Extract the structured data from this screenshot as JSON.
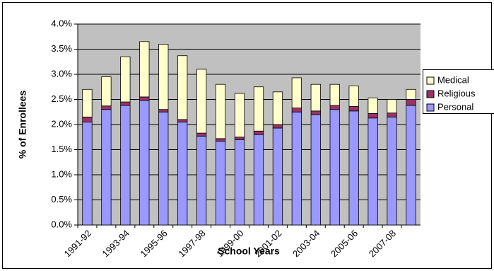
{
  "chart_data": {
    "type": "stacked-bar",
    "x_label": "School Years",
    "y_label": "% of Enrollees",
    "categories": [
      "1991-92",
      null,
      "1993-94",
      null,
      "1995-96",
      null,
      "1997-98",
      null,
      "1999-00",
      null,
      "2001-02",
      null,
      "2003-04",
      null,
      "2005-06",
      null,
      "2007-08",
      null
    ],
    "series": [
      {
        "name": "Personal",
        "color": "#9999ff",
        "values": [
          2.05,
          2.3,
          2.38,
          2.48,
          2.25,
          2.05,
          1.77,
          1.67,
          1.7,
          1.8,
          1.93,
          2.25,
          2.2,
          2.3,
          2.27,
          2.13,
          2.15,
          2.38
        ]
      },
      {
        "name": "Religious",
        "color": "#993366",
        "values": [
          0.1,
          0.07,
          0.07,
          0.07,
          0.05,
          0.05,
          0.06,
          0.05,
          0.05,
          0.07,
          0.07,
          0.08,
          0.07,
          0.08,
          0.09,
          0.09,
          0.08,
          0.12
        ]
      },
      {
        "name": "Medical",
        "color": "#ffffcc",
        "values": [
          0.55,
          0.58,
          0.9,
          1.1,
          1.3,
          1.27,
          1.27,
          1.08,
          0.87,
          0.88,
          0.65,
          0.6,
          0.53,
          0.42,
          0.41,
          0.31,
          0.27,
          0.2
        ]
      }
    ],
    "ylim": [
      0,
      4
    ],
    "yticks": [
      {
        "value": 0,
        "label": "0.0%"
      },
      {
        "value": 0.5,
        "label": "0.5%"
      },
      {
        "value": 1,
        "label": "1.0%"
      },
      {
        "value": 1.5,
        "label": "1.5%"
      },
      {
        "value": 2,
        "label": "2.0%"
      },
      {
        "value": 2.5,
        "label": "2.5%"
      },
      {
        "value": 3,
        "label": "3.0%"
      },
      {
        "value": 3.5,
        "label": "3.5%"
      },
      {
        "value": 4,
        "label": "4.0%"
      }
    ],
    "grid": true,
    "legend": "right"
  }
}
